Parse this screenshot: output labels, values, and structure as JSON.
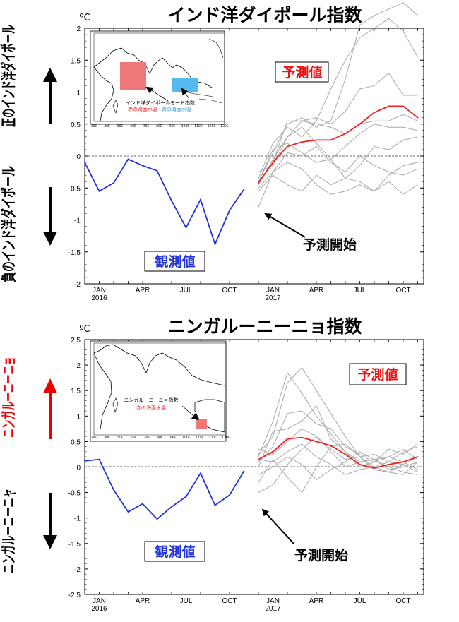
{
  "charts": [
    {
      "title": "インド洋ダイポール指数",
      "unit": "ºC",
      "ylim": [
        -2,
        2
      ],
      "y_ticks": [
        "2",
        "1.5",
        "1",
        "0.5",
        "0",
        "-0.5",
        "-1",
        "-1.5",
        "-2"
      ],
      "side_positive": "正のインド洋ダイポール",
      "side_negative": "負のインド洋ダイポール",
      "observed_label": "観測値",
      "forecast_label": "予測値",
      "forecast_start_label": "予測開始",
      "map_legend_line1": "インド洋ダイポールモード指数",
      "map_legend_line2_a": "赤の海面水温",
      "map_legend_line2_b": "−",
      "map_legend_line2_c": "青の海面水温"
    },
    {
      "title": "ニンガルーニーニョ指数",
      "unit": "ºC",
      "ylim": [
        -2.5,
        2.5
      ],
      "y_ticks": [
        "2.5",
        "2",
        "1.5",
        "1",
        "0.5",
        "0",
        "-0.5",
        "-1",
        "-1.5",
        "-2",
        "-2.5"
      ],
      "side_positive": "ニンガルーニーニョ",
      "side_negative": "ニンガルーニーニャ",
      "observed_label": "観測値",
      "forecast_label": "予測値",
      "forecast_start_label": "予測開始",
      "map_legend_line1": "ニンガルーニーニョ指数",
      "map_legend_line2_a": "赤の海面水温"
    }
  ],
  "x_axis": {
    "tick_labels": [
      "JAN",
      "APR",
      "JUL",
      "OCT",
      "JAN",
      "APR",
      "JUL",
      "OCT"
    ],
    "year_labels": [
      "2016",
      "2017"
    ]
  },
  "map_ticks": {
    "lon": [
      "30E",
      "40E",
      "50E",
      "60E",
      "70E",
      "80E",
      "90E",
      "100E",
      "110E",
      "120E",
      "130E"
    ]
  },
  "colors": {
    "observed": "#2233dd",
    "ensemble_mean": "#ee2222",
    "ensemble_member": "#aaaaaa",
    "positive_arrow": "#ee0000",
    "negative_arrow": "#000000",
    "warm_box": "#ee7777",
    "cool_box": "#55bbee"
  },
  "chart_data": [
    {
      "type": "line",
      "title": "インド洋ダイポール指数",
      "ylabel": "ºC",
      "ylim": [
        -2,
        2
      ],
      "x_range": [
        "2015-12",
        "2017-11"
      ],
      "grid": false,
      "zero_line": "dashed",
      "series": [
        {
          "name": "観測値",
          "x": [
            "2015-12",
            "2016-01",
            "2016-02",
            "2016-03",
            "2016-04",
            "2016-05",
            "2016-06",
            "2016-07",
            "2016-08",
            "2016-09",
            "2016-10",
            "2016-11"
          ],
          "values": [
            -0.1,
            -0.55,
            -0.42,
            -0.05,
            -0.15,
            -0.23,
            -0.7,
            -1.12,
            -0.68,
            -1.38,
            -0.85,
            -0.52
          ]
        },
        {
          "name": "予測値",
          "x": [
            "2016-12",
            "2017-01",
            "2017-02",
            "2017-03",
            "2017-04",
            "2017-05",
            "2017-06",
            "2017-07",
            "2017-08",
            "2017-09",
            "2017-10",
            "2017-11"
          ],
          "values": [
            -0.42,
            -0.1,
            0.15,
            0.22,
            0.25,
            0.25,
            0.35,
            0.5,
            0.68,
            0.78,
            0.78,
            0.6
          ]
        }
      ],
      "members": [
        [
          -0.4,
          0.05,
          0.5,
          0.6,
          0.45,
          0.55,
          1.2,
          2.05,
          2.2,
          2.3,
          2.4,
          2.2
        ],
        [
          -0.35,
          0.2,
          0.45,
          0.3,
          0.55,
          1.05,
          1.5,
          1.85,
          2.0,
          2.15,
          1.95,
          1.55
        ],
        [
          -0.45,
          -0.05,
          0.3,
          0.55,
          0.6,
          0.5,
          0.7,
          1.05,
          1.1,
          1.3,
          0.95,
          0.95
        ],
        [
          -0.4,
          -0.1,
          0.55,
          0.55,
          0.5,
          0.45,
          0.35,
          0.5,
          0.55,
          0.55,
          0.65,
          0.55
        ],
        [
          -0.4,
          0.1,
          0.2,
          0.05,
          -0.1,
          -0.05,
          0.15,
          0.35,
          0.5,
          0.45,
          0.45,
          0.4
        ],
        [
          -0.5,
          -0.25,
          0.05,
          0.0,
          0.15,
          -0.1,
          -0.25,
          0.0,
          -0.15,
          -0.25,
          -0.3,
          -0.2
        ],
        [
          -0.25,
          -0.15,
          0.3,
          0.45,
          0.2,
          -0.05,
          -0.35,
          -0.4,
          -0.55,
          -0.3,
          -0.15,
          -0.1
        ],
        [
          -0.55,
          -0.3,
          -0.45,
          -0.55,
          -0.3,
          -0.45,
          -0.35,
          -0.15,
          0.15,
          0.1,
          0.25,
          0.3
        ],
        [
          -0.8,
          -0.25,
          -0.1,
          -0.2,
          -0.45,
          -0.6,
          -0.55,
          -0.45,
          -0.55,
          -0.4,
          -0.6,
          -0.45
        ]
      ]
    },
    {
      "type": "line",
      "title": "ニンガルーニーニョ指数",
      "ylabel": "ºC",
      "ylim": [
        -2.5,
        2.5
      ],
      "x_range": [
        "2015-12",
        "2017-11"
      ],
      "grid": false,
      "zero_line": "dashed",
      "series": [
        {
          "name": "観測値",
          "x": [
            "2015-12",
            "2016-01",
            "2016-02",
            "2016-03",
            "2016-04",
            "2016-05",
            "2016-06",
            "2016-07",
            "2016-08",
            "2016-09",
            "2016-10",
            "2016-11"
          ],
          "values": [
            0.12,
            0.15,
            -0.45,
            -0.88,
            -0.72,
            -1.02,
            -0.78,
            -0.58,
            -0.12,
            -0.75,
            -0.55,
            -0.08
          ]
        },
        {
          "name": "予測値",
          "x": [
            "2016-12",
            "2017-01",
            "2017-02",
            "2017-03",
            "2017-04",
            "2017-05",
            "2017-06",
            "2017-07",
            "2017-08",
            "2017-09",
            "2017-10",
            "2017-11"
          ],
          "values": [
            0.15,
            0.3,
            0.55,
            0.58,
            0.5,
            0.42,
            0.25,
            0.05,
            -0.02,
            0.05,
            0.1,
            0.2
          ]
        }
      ],
      "members": [
        [
          0.2,
          0.9,
          1.85,
          1.45,
          1.0,
          0.65,
          0.3,
          0.0,
          0.1,
          0.35,
          0.25,
          0.45
        ],
        [
          0.25,
          0.6,
          1.65,
          1.95,
          1.5,
          1.05,
          0.6,
          0.2,
          0.0,
          0.1,
          0.3,
          0.4
        ],
        [
          0.1,
          0.4,
          1.05,
          1.1,
          0.85,
          0.75,
          0.4,
          0.25,
          0.1,
          0.2,
          0.35,
          0.15
        ],
        [
          0.0,
          0.7,
          0.75,
          0.9,
          1.2,
          0.55,
          0.3,
          0.1,
          0.15,
          -0.05,
          0.0,
          0.1
        ],
        [
          0.35,
          0.25,
          0.5,
          0.75,
          0.6,
          0.35,
          0.15,
          0.2,
          0.25,
          0.1,
          0.05,
          -0.1
        ],
        [
          0.15,
          0.1,
          0.3,
          0.45,
          0.2,
          0.05,
          -0.15,
          -0.05,
          0.0,
          -0.1,
          -0.15,
          0.1
        ],
        [
          -0.15,
          0.0,
          0.2,
          0.05,
          -0.25,
          -0.05,
          0.1,
          0.3,
          0.15,
          0.0,
          -0.1,
          -0.15
        ],
        [
          -0.3,
          0.15,
          -0.2,
          -0.5,
          0.0,
          0.4,
          0.45,
          0.2,
          -0.05,
          -0.1,
          0.05,
          0.2
        ],
        [
          -0.5,
          -0.35,
          0.05,
          0.35,
          0.6,
          0.3,
          0.0,
          0.1,
          0.15,
          0.2,
          0.1,
          -0.05
        ]
      ]
    }
  ]
}
